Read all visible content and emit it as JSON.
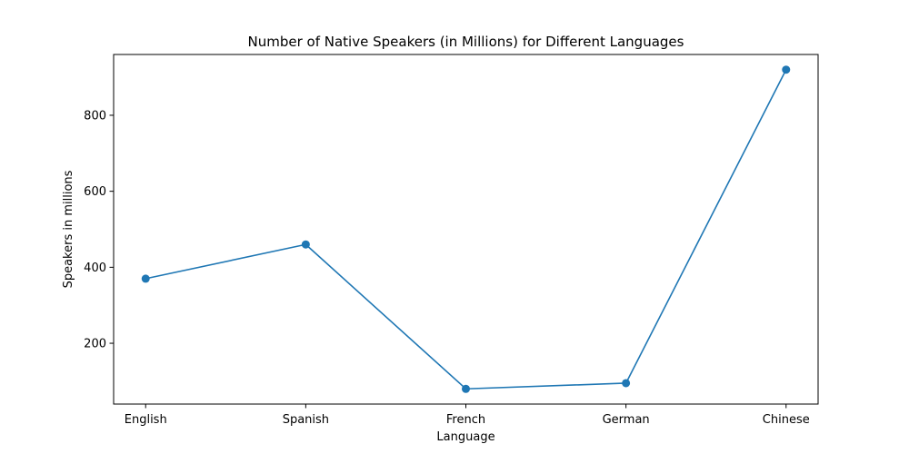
{
  "chart_data": {
    "type": "line",
    "title": "Number of Native Speakers (in Millions) for Different Languages",
    "xlabel": "Language",
    "ylabel": "Speakers in millions",
    "categories": [
      "English",
      "Spanish",
      "French",
      "German",
      "Chinese"
    ],
    "series": [
      {
        "values": [
          370,
          460,
          80,
          95,
          920
        ],
        "color": "#1f77b4",
        "marker": "circle"
      }
    ],
    "ylim": [
      40,
      960
    ],
    "yticks": [
      200,
      400,
      600,
      800
    ],
    "ytick_labels": [
      "200",
      "400",
      "600",
      "800"
    ],
    "grid": false,
    "legend": "none"
  }
}
